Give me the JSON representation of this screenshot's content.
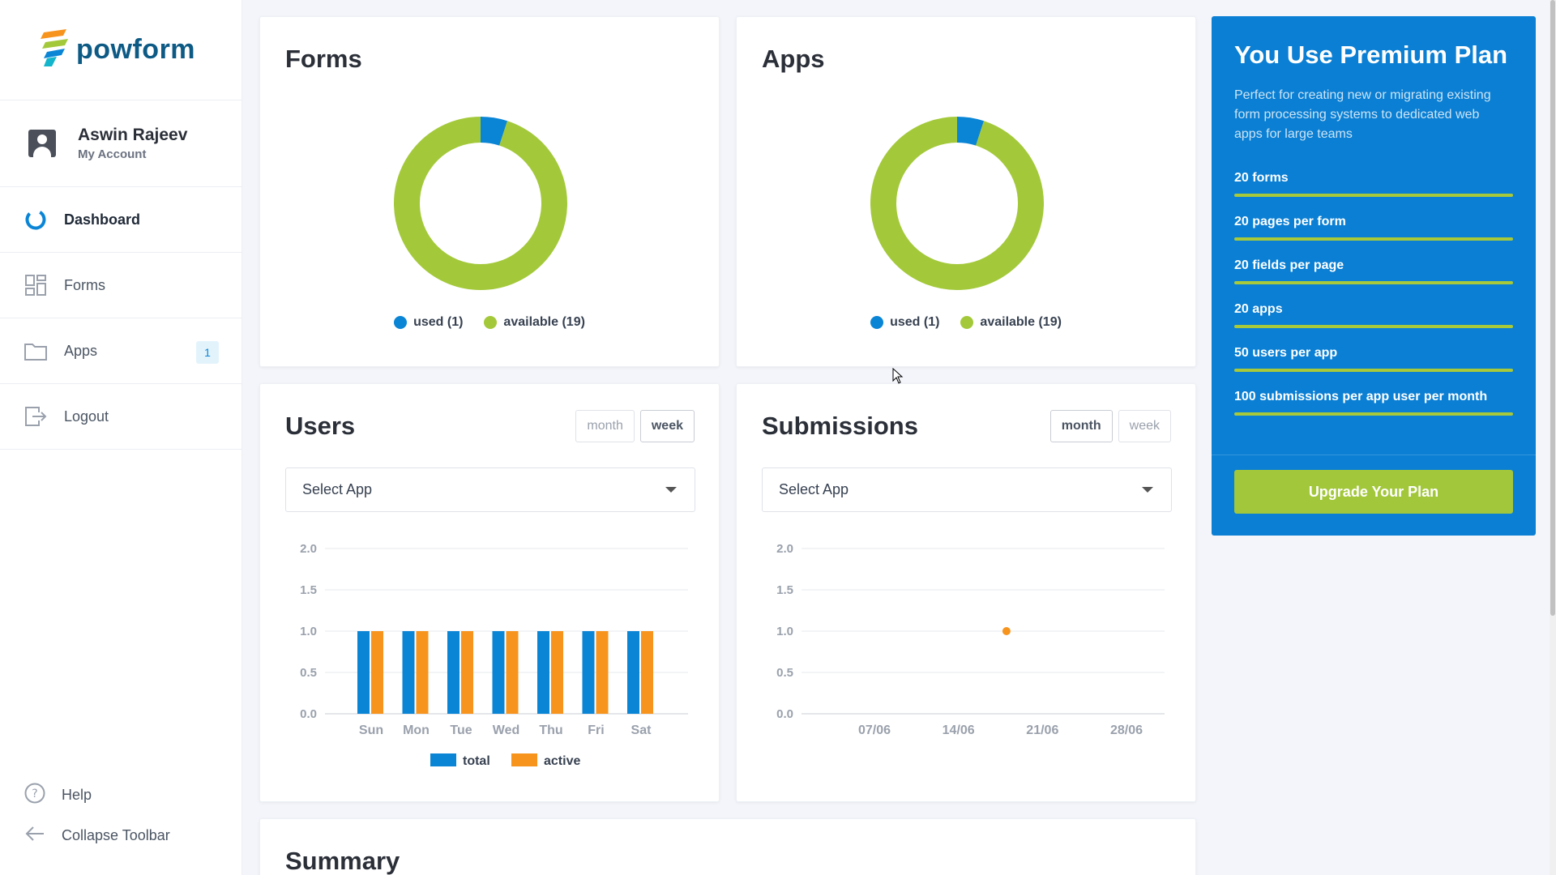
{
  "app": {
    "logo_text": "powform"
  },
  "account": {
    "name": "Aswin Rajeev",
    "subtitle": "My Account"
  },
  "nav": {
    "dashboard": "Dashboard",
    "forms": "Forms",
    "apps": "Apps",
    "apps_badge": "1",
    "logout": "Logout",
    "help": "Help",
    "collapse": "Collapse Toolbar"
  },
  "forms_card": {
    "title": "Forms",
    "legend_used": "used (1)",
    "legend_available": "available (19)",
    "used": 1,
    "available": 19
  },
  "apps_card": {
    "title": "Apps",
    "legend_used": "used (1)",
    "legend_available": "available (19)",
    "used": 1,
    "available": 19
  },
  "users_card": {
    "title": "Users",
    "toggle_month": "month",
    "toggle_week": "week",
    "active_toggle": "week",
    "select_placeholder": "Select App"
  },
  "submissions_card": {
    "title": "Submissions",
    "toggle_month": "month",
    "toggle_week": "week",
    "active_toggle": "month",
    "select_placeholder": "Select App"
  },
  "summary": {
    "title": "Summary"
  },
  "premium": {
    "title": "You Use Premium Plan",
    "description": "Perfect for creating new or migrating existing form processing systems to dedicated web apps for large teams",
    "features": [
      "20 forms",
      "20 pages per form",
      "20 fields per page",
      "20 apps",
      "50 users per app",
      "100 submissions per app user per month"
    ],
    "upgrade_label": "Upgrade Your Plan"
  },
  "colors": {
    "blue": "#0a85d6",
    "green": "#a3c93a",
    "orange": "#f7941d",
    "premium_bg": "#0a7fd3"
  },
  "chart_data": [
    {
      "type": "pie",
      "title": "Forms",
      "categories": [
        "used (1)",
        "available (19)"
      ],
      "values": [
        1,
        19
      ]
    },
    {
      "type": "pie",
      "title": "Apps",
      "categories": [
        "used (1)",
        "available (19)"
      ],
      "values": [
        1,
        19
      ]
    },
    {
      "type": "bar",
      "title": "Users",
      "categories": [
        "Sun",
        "Mon",
        "Tue",
        "Wed",
        "Thu",
        "Fri",
        "Sat"
      ],
      "series": [
        {
          "name": "total",
          "values": [
            1,
            1,
            1,
            1,
            1,
            1,
            1
          ]
        },
        {
          "name": "active",
          "values": [
            1,
            1,
            1,
            1,
            1,
            1,
            1
          ]
        }
      ],
      "yticks": [
        "0.0",
        "0.5",
        "1.0",
        "1.5",
        "2.0"
      ],
      "ylim": [
        0,
        2
      ],
      "grid": true,
      "legend": "bottom"
    },
    {
      "type": "line",
      "title": "Submissions",
      "xticks": [
        "07/06",
        "14/06",
        "21/06",
        "28/06"
      ],
      "x": [
        "18/06"
      ],
      "y": [
        1
      ],
      "yticks": [
        "0.0",
        "0.5",
        "1.0",
        "1.5",
        "2.0"
      ],
      "ylim": [
        0,
        2
      ],
      "grid": true
    }
  ]
}
